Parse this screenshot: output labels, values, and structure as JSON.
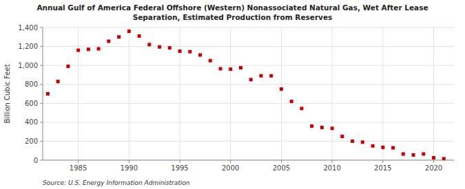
{
  "chart_data": {
    "type": "scatter",
    "title": "Annual Gulf of America Federal Offshore (Western) Nonassociated Natural Gas, Wet After Lease\nSeparation, Estimated Production from Reserves",
    "y_label": "Billion Cubic Feet",
    "source": "Source: U.S. Energy Information Administration",
    "color": "#cc0000",
    "marker": "square",
    "grid": true,
    "x": [
      1982,
      1983,
      1984,
      1985,
      1986,
      1987,
      1988,
      1989,
      1990,
      1991,
      1992,
      1993,
      1994,
      1995,
      1996,
      1997,
      1998,
      1999,
      2000,
      2001,
      2002,
      2003,
      2004,
      2005,
      2006,
      2007,
      2008,
      2009,
      2010,
      2011,
      2012,
      2013,
      2014,
      2015,
      2016,
      2017,
      2018,
      2019,
      2020,
      2021
    ],
    "values": [
      700,
      830,
      990,
      1160,
      1170,
      1175,
      1255,
      1300,
      1360,
      1310,
      1220,
      1195,
      1185,
      1150,
      1145,
      1110,
      1050,
      965,
      960,
      975,
      850,
      890,
      890,
      750,
      620,
      545,
      360,
      345,
      335,
      250,
      200,
      190,
      150,
      135,
      130,
      65,
      55,
      65,
      25,
      15
    ],
    "xlim": [
      1981.5,
      2022
    ],
    "xticks": [
      1985,
      1990,
      1995,
      2000,
      2005,
      2010,
      2015,
      2020
    ],
    "ylim": [
      0,
      1400
    ],
    "yticks": [
      0,
      200,
      400,
      600,
      800,
      {
        "value": 1000,
        "label": "1,000"
      },
      {
        "value": 1200,
        "label": "1,200"
      },
      {
        "value": 1400,
        "label": "1,400"
      }
    ]
  }
}
